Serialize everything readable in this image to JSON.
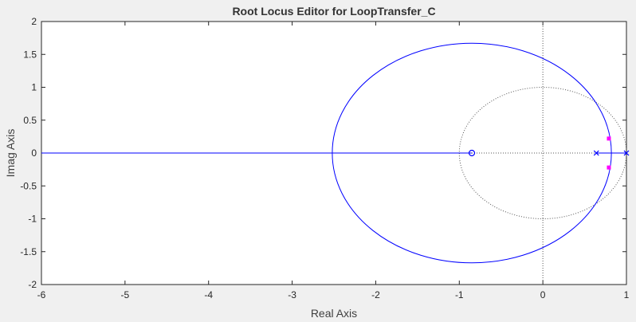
{
  "chart_data": {
    "type": "line",
    "title": "Root Locus Editor for LoopTransfer_C",
    "xlabel": "Real Axis",
    "ylabel": "Imag Axis",
    "xlim": [
      -6,
      1
    ],
    "ylim": [
      -2,
      2
    ],
    "xticks": [
      -6,
      -5,
      -4,
      -3,
      -2,
      -1,
      0,
      1
    ],
    "yticks": [
      -2,
      -1.5,
      -1,
      -0.5,
      0,
      0.5,
      1,
      1.5,
      2
    ],
    "xtick_labels": [
      "-6",
      "-5",
      "-4",
      "-3",
      "-2",
      "-1",
      "0",
      "1"
    ],
    "ytick_labels": [
      "-2",
      "-1.5",
      "-1",
      "-0.5",
      "0",
      "0.5",
      "1",
      "1.5",
      "2"
    ],
    "grid": false,
    "series": [
      {
        "kind": "locus-circle",
        "color": "#0000ff",
        "center": [
          -0.85,
          0
        ],
        "radius": 1.67
      },
      {
        "kind": "locus-real-axis",
        "color": "#0000ff",
        "x": [
          -6,
          -0.85
        ]
      },
      {
        "kind": "locus-real-axis",
        "color": "#0000ff",
        "x": [
          0.64,
          1
        ]
      },
      {
        "kind": "unit-circle",
        "style": "dotted",
        "color": "#555555",
        "center": [
          0,
          0
        ],
        "radius": 1
      },
      {
        "kind": "zeros",
        "marker": "o",
        "color": "#0000ff",
        "points": [
          [
            -0.85,
            0
          ]
        ]
      },
      {
        "kind": "poles",
        "marker": "x",
        "color": "#0000ff",
        "points": [
          [
            0.64,
            0
          ],
          [
            1.0,
            0
          ]
        ]
      },
      {
        "kind": "closed-loop-poles",
        "marker": "square",
        "color": "#ff00ff",
        "points": [
          [
            0.79,
            0.22
          ],
          [
            0.79,
            -0.22
          ]
        ]
      }
    ],
    "axis_lines": {
      "color": "#555555",
      "style": "dotted",
      "x0": 0,
      "y0": 0
    }
  }
}
